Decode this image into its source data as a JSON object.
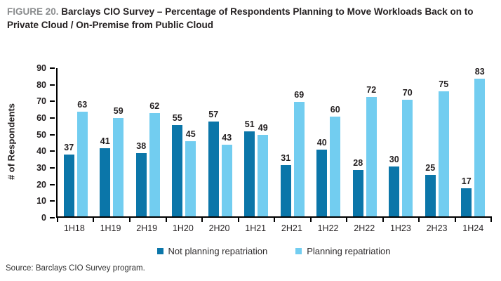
{
  "header": {
    "figure_label": "FIGURE 20.",
    "title": "Barclays CIO Survey – Percentage of Respondents Planning to Move Workloads Back on to Private Cloud / On-Premise from Public Cloud"
  },
  "chart_data": {
    "type": "bar",
    "title": "Barclays CIO Survey – Percentage of Respondents Planning to Move Workloads Back on to Private Cloud / On-Premise from Public Cloud",
    "categories": [
      "1H18",
      "1H19",
      "2H19",
      "1H20",
      "2H20",
      "1H21",
      "2H21",
      "1H22",
      "2H22",
      "1H23",
      "2H23",
      "1H24"
    ],
    "series": [
      {
        "name": "Not planning repatriation",
        "color": "#0b76a9",
        "values": [
          37,
          41,
          38,
          55,
          57,
          51,
          31,
          40,
          28,
          30,
          25,
          17
        ]
      },
      {
        "name": "Planning repatriation",
        "color": "#72cdf0",
        "values": [
          63,
          59,
          62,
          45,
          43,
          49,
          69,
          60,
          72,
          70,
          75,
          83
        ]
      }
    ],
    "xlabel": "",
    "ylabel": "# of Respondents",
    "ylim": [
      0,
      90
    ],
    "ytick_step": 10,
    "grid": false,
    "legend_position": "bottom",
    "axis_color": "#000000",
    "label_color": "#231f20"
  },
  "footer": {
    "source": "Source: Barclays CIO Survey program."
  }
}
